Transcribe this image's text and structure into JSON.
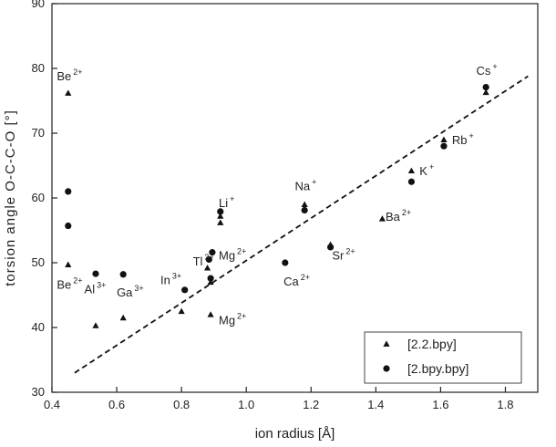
{
  "chart_data": {
    "type": "scatter",
    "title": "",
    "xlabel": "ion radius [Å]",
    "ylabel": "torsion angle O-C-C-O [°]",
    "xlim": [
      0.4,
      1.9
    ],
    "ylim": [
      30,
      90
    ],
    "xticks": [
      "0.4",
      "0.6",
      "0.8",
      "1.0",
      "1.2",
      "1.4",
      "1.6",
      "1.8"
    ],
    "yticks": [
      "30",
      "40",
      "50",
      "60",
      "70",
      "80",
      "90"
    ],
    "series": [
      {
        "name": "[2.2.bpy]",
        "marker": "triangle",
        "points": [
          {
            "x": 0.45,
            "y": 76.2
          },
          {
            "x": 0.45,
            "y": 49.7
          },
          {
            "x": 0.535,
            "y": 40.3
          },
          {
            "x": 0.62,
            "y": 41.5
          },
          {
            "x": 0.8,
            "y": 42.5
          },
          {
            "x": 0.88,
            "y": 49.2
          },
          {
            "x": 0.89,
            "y": 47.0
          },
          {
            "x": 0.89,
            "y": 42.0
          },
          {
            "x": 0.92,
            "y": 57.2
          },
          {
            "x": 0.92,
            "y": 56.2
          },
          {
            "x": 1.18,
            "y": 59.0
          },
          {
            "x": 1.26,
            "y": 52.8
          },
          {
            "x": 1.42,
            "y": 56.8
          },
          {
            "x": 1.51,
            "y": 64.2
          },
          {
            "x": 1.61,
            "y": 69.0
          },
          {
            "x": 1.74,
            "y": 76.3
          }
        ]
      },
      {
        "name": "[2.bpy.bpy]",
        "marker": "circle",
        "points": [
          {
            "x": 0.45,
            "y": 61.0
          },
          {
            "x": 0.45,
            "y": 55.7
          },
          {
            "x": 0.535,
            "y": 48.3
          },
          {
            "x": 0.62,
            "y": 48.2
          },
          {
            "x": 0.81,
            "y": 45.8
          },
          {
            "x": 0.885,
            "y": 50.5
          },
          {
            "x": 0.89,
            "y": 47.6
          },
          {
            "x": 0.895,
            "y": 51.6
          },
          {
            "x": 0.92,
            "y": 57.9
          },
          {
            "x": 1.12,
            "y": 50.0
          },
          {
            "x": 1.18,
            "y": 58.1
          },
          {
            "x": 1.26,
            "y": 52.4
          },
          {
            "x": 1.51,
            "y": 62.5
          },
          {
            "x": 1.61,
            "y": 68.0
          },
          {
            "x": 1.74,
            "y": 77.1
          }
        ]
      }
    ],
    "trendline": {
      "style": "dashed",
      "from": {
        "x": 0.47,
        "y": 33.0
      },
      "to": {
        "x": 1.87,
        "y": 78.8
      }
    },
    "annotations": [
      {
        "base": "Be",
        "sup": "2+",
        "x": 0.415,
        "y": 78.2
      },
      {
        "base": "Be",
        "sup": "2+",
        "x": 0.415,
        "y": 46.0
      },
      {
        "base": "Al",
        "sup": "3+",
        "x": 0.5,
        "y": 45.3
      },
      {
        "base": "Ga",
        "sup": "3+",
        "x": 0.6,
        "y": 44.8
      },
      {
        "base": "In",
        "sup": "3+",
        "x": 0.735,
        "y": 46.7
      },
      {
        "base": "Tl",
        "sup": "3+",
        "x": 0.835,
        "y": 49.6
      },
      {
        "base": "Mg",
        "sup": "2+",
        "x": 0.915,
        "y": 50.5
      },
      {
        "base": "Mg",
        "sup": "2+",
        "x": 0.915,
        "y": 40.5
      },
      {
        "base": "Li",
        "sup": "+",
        "x": 0.915,
        "y": 58.6
      },
      {
        "base": "Na",
        "sup": "+",
        "x": 1.15,
        "y": 61.2
      },
      {
        "base": "Ca",
        "sup": "2+",
        "x": 1.115,
        "y": 46.5
      },
      {
        "base": "Sr",
        "sup": "2+",
        "x": 1.265,
        "y": 50.5
      },
      {
        "base": "Ba",
        "sup": "2+",
        "x": 1.43,
        "y": 56.5
      },
      {
        "base": "K",
        "sup": "+",
        "x": 1.535,
        "y": 63.5
      },
      {
        "base": "Rb",
        "sup": "+",
        "x": 1.635,
        "y": 68.3
      },
      {
        "base": "Cs",
        "sup": "+",
        "x": 1.71,
        "y": 79.0
      }
    ],
    "legend": {
      "placement": "bottom-right",
      "entries": [
        "[2.2.bpy]",
        "[2.bpy.bpy]"
      ]
    },
    "grid": false
  }
}
